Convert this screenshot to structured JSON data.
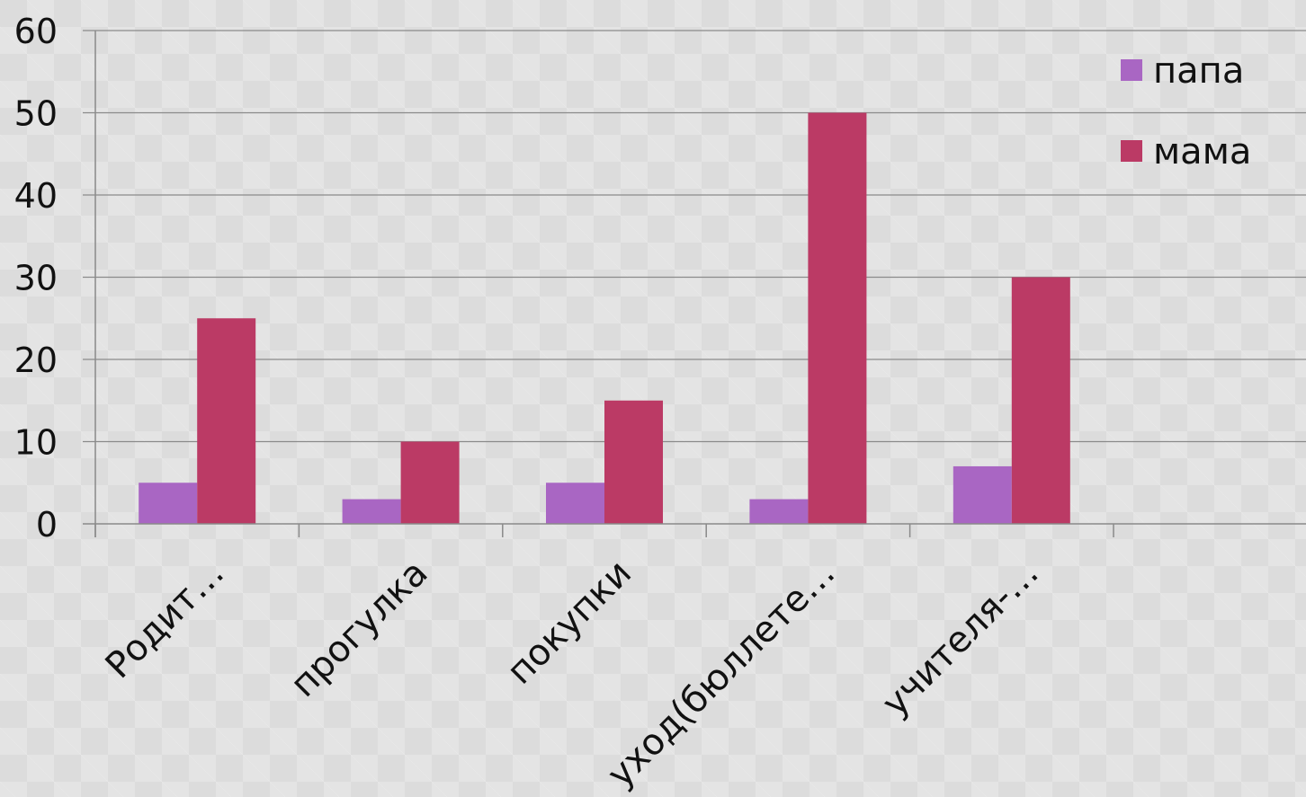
{
  "chart_data": {
    "type": "bar",
    "categories": [
      "Родит…",
      "прогулка",
      "покупки",
      "уход(бюллете…",
      "учителя-…"
    ],
    "series": [
      {
        "name": "папа",
        "values": [
          5,
          3,
          5,
          3,
          7
        ],
        "color": "#a966c3"
      },
      {
        "name": "мама",
        "values": [
          25,
          10,
          15,
          50,
          30
        ],
        "color": "#bb3a65"
      }
    ],
    "yticks": [
      "0",
      "10",
      "20",
      "30",
      "40",
      "50",
      "60"
    ],
    "ylim": [
      0,
      60
    ],
    "grid": true,
    "legend": "top-right",
    "title": "",
    "xlabel": "",
    "ylabel": ""
  }
}
